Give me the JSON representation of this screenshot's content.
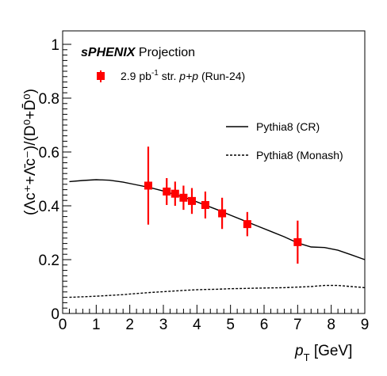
{
  "chart_data": {
    "type": "scatter",
    "title_experiment": "sPHENIX",
    "title_suffix": "Projection",
    "xlabel_main": "p",
    "xlabel_sub": "T",
    "xlabel_unit": "[GeV]",
    "ylabel": "(Λc⁺+Λ̄c⁻)/(D⁰+D̄⁰)",
    "xlim": [
      0,
      9
    ],
    "ylim": [
      0,
      1.05
    ],
    "x_ticks": [
      "0",
      "1",
      "2",
      "3",
      "4",
      "5",
      "6",
      "7",
      "8",
      "9"
    ],
    "y_ticks": [
      "0",
      "0.2",
      "0.4",
      "0.6",
      "0.8",
      "1"
    ],
    "legend_placement": "top",
    "data_legend": {
      "lumi": "2.9 pb",
      "lumi_exp": "-1",
      "lumi_unit": "str.",
      "system": "p+p",
      "run": "(Run-24)"
    },
    "series": [
      {
        "name": "Pythia8 (CR)",
        "style": "solid",
        "color": "#000000",
        "x": [
          0.2,
          0.6,
          1.0,
          1.4,
          1.8,
          2.2,
          2.6,
          3.0,
          3.4,
          3.8,
          4.2,
          4.6,
          5.0,
          5.4,
          5.8,
          6.2,
          6.6,
          7.0,
          7.4,
          7.8,
          8.2,
          8.6,
          9.0
        ],
        "y": [
          0.49,
          0.494,
          0.497,
          0.495,
          0.488,
          0.478,
          0.468,
          0.455,
          0.44,
          0.424,
          0.405,
          0.386,
          0.365,
          0.345,
          0.325,
          0.305,
          0.285,
          0.262,
          0.247,
          0.245,
          0.235,
          0.218,
          0.2
        ]
      },
      {
        "name": "Pythia8 (Monash)",
        "style": "dashed",
        "color": "#000000",
        "x": [
          0.2,
          0.6,
          1.0,
          1.4,
          1.8,
          2.2,
          2.6,
          3.0,
          3.4,
          3.8,
          4.2,
          4.6,
          5.0,
          5.4,
          5.8,
          6.2,
          6.6,
          7.0,
          7.4,
          7.8,
          8.2,
          8.6,
          9.0
        ],
        "y": [
          0.06,
          0.062,
          0.064,
          0.067,
          0.07,
          0.074,
          0.078,
          0.081,
          0.084,
          0.087,
          0.089,
          0.09,
          0.092,
          0.093,
          0.094,
          0.095,
          0.096,
          0.098,
          0.1,
          0.104,
          0.104,
          0.1,
          0.096
        ]
      },
      {
        "name": "sPHENIX projection",
        "style": "markers",
        "color": "#ff0000",
        "points": [
          {
            "x": 2.55,
            "y": 0.475,
            "err": 0.145
          },
          {
            "x": 3.1,
            "y": 0.453,
            "err": 0.05
          },
          {
            "x": 3.35,
            "y": 0.445,
            "err": 0.045
          },
          {
            "x": 3.6,
            "y": 0.43,
            "err": 0.045
          },
          {
            "x": 3.85,
            "y": 0.418,
            "err": 0.048
          },
          {
            "x": 4.25,
            "y": 0.403,
            "err": 0.05
          },
          {
            "x": 4.75,
            "y": 0.372,
            "err": 0.058
          },
          {
            "x": 5.5,
            "y": 0.332,
            "err": 0.045
          },
          {
            "x": 7.0,
            "y": 0.265,
            "err": 0.08
          }
        ]
      }
    ]
  }
}
